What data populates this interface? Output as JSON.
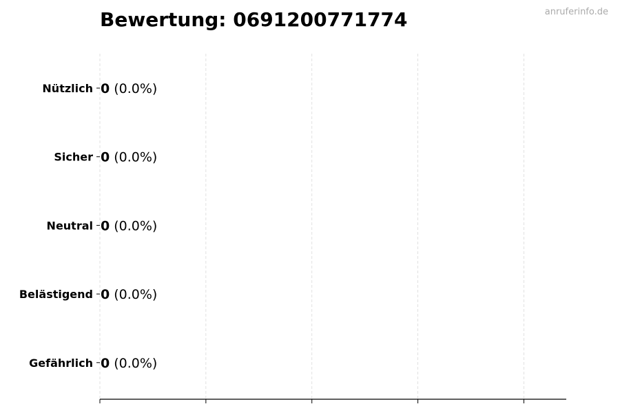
{
  "watermark": "anruferinfo.de",
  "chart_data": {
    "type": "bar",
    "orientation": "horizontal",
    "title": "Bewertung: 0691200771774",
    "categories": [
      "Nützlich",
      "Sicher",
      "Neutral",
      "Belästigend",
      "Gefährlich"
    ],
    "values": [
      0,
      0,
      0,
      0,
      0
    ],
    "data_labels": [
      {
        "count": "0",
        "percent": "(0.0%)"
      },
      {
        "count": "0",
        "percent": "(0.0%)"
      },
      {
        "count": "0",
        "percent": "(0.0%)"
      },
      {
        "count": "0",
        "percent": "(0.0%)"
      },
      {
        "count": "0",
        "percent": "(0.0%)"
      }
    ],
    "xlim": [
      0,
      4.4
    ],
    "xticks": [
      0,
      1,
      2,
      3,
      4
    ],
    "xtick_labels_shown": false,
    "xlabel": "",
    "ylabel": "",
    "grid": "x-dashed",
    "colors": {
      "grid": "#d9d9d9",
      "bar_edge": "#000000",
      "watermark": "#aaaaaa"
    }
  }
}
